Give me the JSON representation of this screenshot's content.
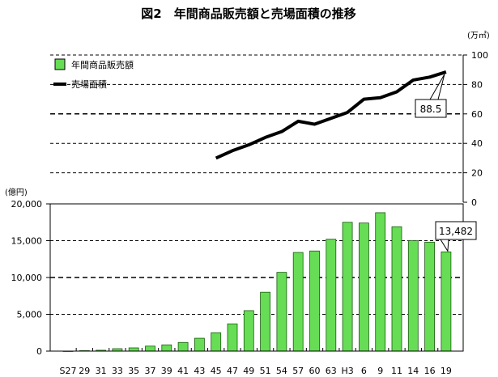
{
  "chart_data": {
    "type": "bar+line",
    "title": "図2　年間商品販売額と売場面積の推移",
    "legend": {
      "placement": "top-left",
      "entries": [
        "年間商品販売額",
        "売場面積"
      ]
    },
    "categories": [
      "S27",
      "29",
      "31",
      "33",
      "35",
      "37",
      "39",
      "41",
      "43",
      "45",
      "47",
      "49",
      "51",
      "54",
      "57",
      "60",
      "63",
      "H3",
      "6",
      "9",
      "11",
      "14",
      "16",
      "19"
    ],
    "bar_series": {
      "name": "年間商品販売額",
      "unit": "(億円)",
      "color": "#66dd55",
      "values": [
        5,
        60,
        120,
        330,
        440,
        680,
        850,
        1180,
        1750,
        2500,
        3700,
        5500,
        8000,
        10700,
        13400,
        13600,
        15200,
        17500,
        17400,
        18800,
        16900,
        15000,
        14800,
        13482
      ],
      "ylim": [
        0,
        20000
      ],
      "yticks": [
        "0",
        "5,000",
        "10,000",
        "15,000",
        "20,000"
      ],
      "callout": "13,482"
    },
    "line_series": {
      "name": "売場面積",
      "unit": "(万㎡)",
      "start_index": 9,
      "values": [
        30,
        35,
        39,
        44,
        48,
        55,
        53,
        57,
        61,
        70,
        71,
        75,
        83,
        85,
        88.5
      ],
      "ylim": [
        0,
        100
      ],
      "yticks": [
        "0",
        "20",
        "40",
        "60",
        "80",
        "100"
      ],
      "callout": "88.5"
    }
  }
}
